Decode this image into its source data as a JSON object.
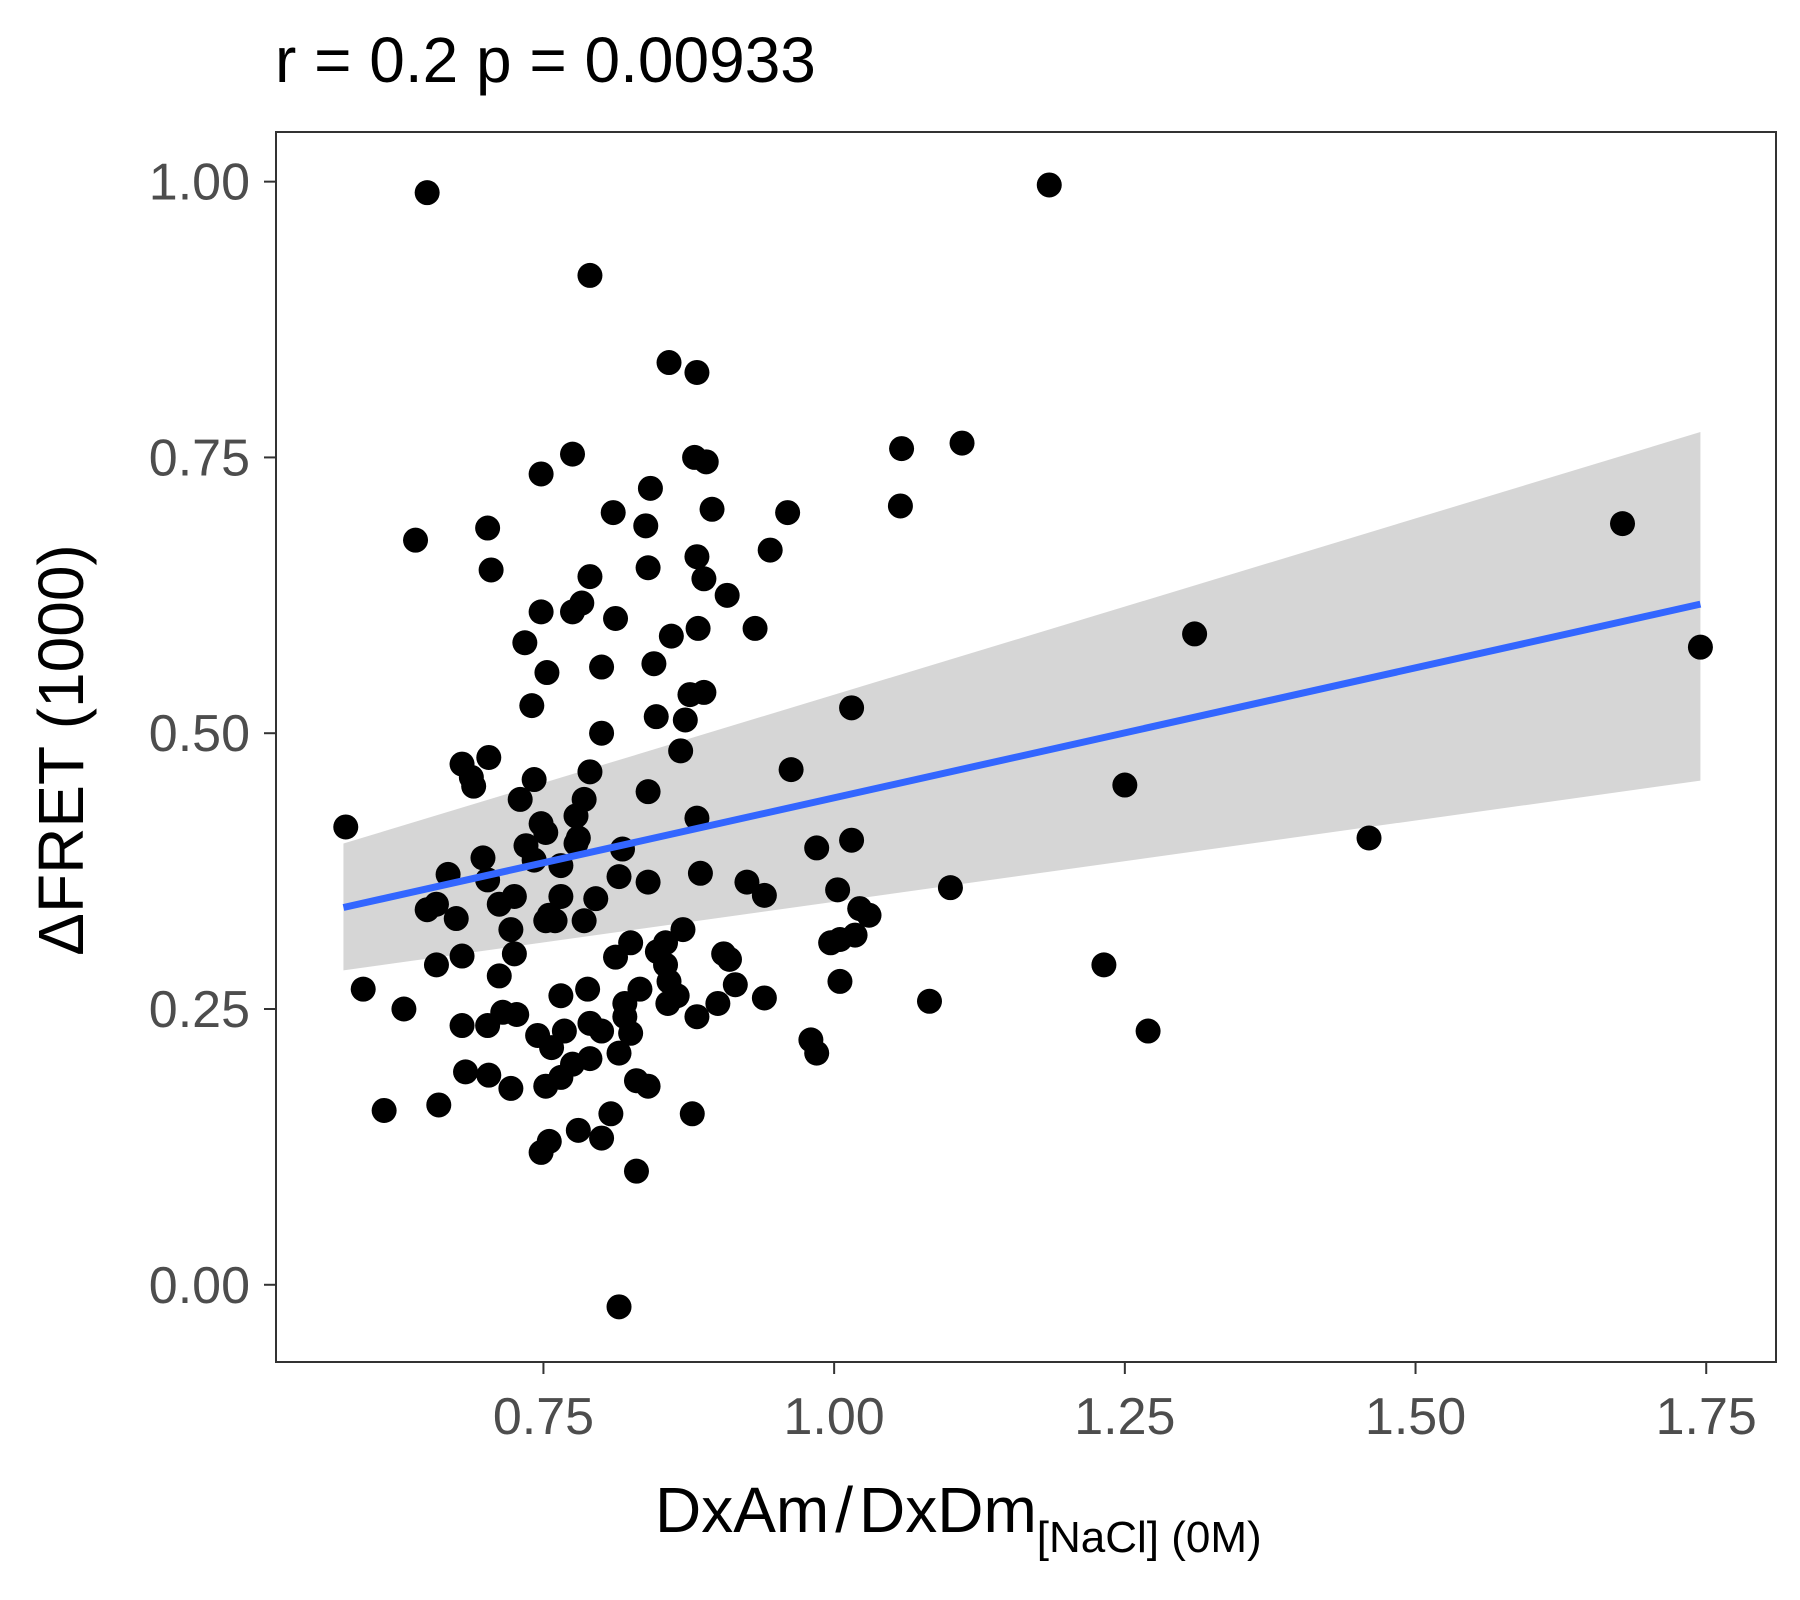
{
  "chart_data": {
    "type": "scatter",
    "title": "r =  0.2 p =  0.00933",
    "xlabel": {
      "main": "DxAm",
      "separator": "/",
      "main2": "DxDm",
      "subscript": "[NaCl] (0M)"
    },
    "ylabel": "ΔFRET (1000)",
    "xlim": [
      0.52,
      1.81
    ],
    "ylim": [
      -0.07,
      1.045
    ],
    "x_ticks": [
      0.75,
      1.0,
      1.25,
      1.5,
      1.75
    ],
    "x_tick_labels": [
      "0.75",
      "1.00",
      "1.25",
      "1.50",
      "1.75"
    ],
    "y_ticks": [
      0.0,
      0.25,
      0.5,
      0.75,
      1.0
    ],
    "y_tick_labels": [
      "0.00",
      "0.25",
      "0.50",
      "0.75",
      "1.00"
    ],
    "grid": false,
    "point_color": "#000000",
    "trend_color": "#3366ff",
    "band_color": "#999999",
    "trend": {
      "x": [
        0.578,
        1.745
      ],
      "y": [
        0.342,
        0.617
      ]
    },
    "confidence_band": {
      "x": [
        0.578,
        1.745
      ],
      "upper": [
        0.4,
        0.773
      ],
      "lower": [
        0.285,
        0.457
      ]
    },
    "points": [
      [
        0.58,
        0.415
      ],
      [
        0.65,
        0.99
      ],
      [
        0.64,
        0.675
      ],
      [
        0.79,
        0.915
      ],
      [
        1.185,
        0.997
      ],
      [
        0.858,
        0.836
      ],
      [
        0.882,
        0.827
      ],
      [
        0.775,
        0.753
      ],
      [
        0.748,
        0.735
      ],
      [
        0.88,
        0.75
      ],
      [
        0.89,
        0.746
      ],
      [
        0.842,
        0.722
      ],
      [
        1.058,
        0.758
      ],
      [
        1.11,
        0.763
      ],
      [
        1.057,
        0.706
      ],
      [
        0.96,
        0.7
      ],
      [
        0.895,
        0.703
      ],
      [
        0.81,
        0.7
      ],
      [
        0.838,
        0.688
      ],
      [
        0.702,
        0.686
      ],
      [
        0.945,
        0.666
      ],
      [
        0.882,
        0.66
      ],
      [
        0.84,
        0.65
      ],
      [
        0.705,
        0.648
      ],
      [
        0.888,
        0.64
      ],
      [
        0.79,
        0.642
      ],
      [
        0.908,
        0.625
      ],
      [
        0.783,
        0.618
      ],
      [
        0.775,
        0.61
      ],
      [
        0.748,
        0.61
      ],
      [
        0.812,
        0.604
      ],
      [
        0.932,
        0.595
      ],
      [
        0.883,
        0.595
      ],
      [
        0.86,
        0.588
      ],
      [
        0.734,
        0.582
      ],
      [
        0.845,
        0.563
      ],
      [
        0.8,
        0.56
      ],
      [
        0.753,
        0.555
      ],
      [
        0.888,
        0.537
      ],
      [
        0.876,
        0.535
      ],
      [
        1.015,
        0.523
      ],
      [
        0.74,
        0.525
      ],
      [
        0.847,
        0.515
      ],
      [
        0.872,
        0.512
      ],
      [
        0.8,
        0.5
      ],
      [
        0.868,
        0.484
      ],
      [
        0.703,
        0.478
      ],
      [
        0.68,
        0.472
      ],
      [
        0.79,
        0.465
      ],
      [
        0.963,
        0.467
      ],
      [
        0.688,
        0.46
      ],
      [
        0.742,
        0.458
      ],
      [
        0.69,
        0.452
      ],
      [
        0.84,
        0.447
      ],
      [
        0.785,
        0.44
      ],
      [
        0.73,
        0.44
      ],
      [
        0.778,
        0.425
      ],
      [
        0.882,
        0.423
      ],
      [
        0.748,
        0.418
      ],
      [
        0.752,
        0.41
      ],
      [
        0.78,
        0.405
      ],
      [
        0.778,
        0.4
      ],
      [
        0.735,
        0.398
      ],
      [
        0.818,
        0.395
      ],
      [
        0.985,
        0.396
      ],
      [
        1.015,
        0.403
      ],
      [
        0.698,
        0.387
      ],
      [
        0.742,
        0.385
      ],
      [
        0.765,
        0.38
      ],
      [
        0.668,
        0.372
      ],
      [
        0.885,
        0.373
      ],
      [
        0.815,
        0.37
      ],
      [
        0.702,
        0.367
      ],
      [
        0.84,
        0.365
      ],
      [
        0.925,
        0.365
      ],
      [
        1.003,
        0.358
      ],
      [
        1.1,
        0.36
      ],
      [
        0.94,
        0.353
      ],
      [
        0.765,
        0.352
      ],
      [
        0.795,
        0.35
      ],
      [
        0.725,
        0.352
      ],
      [
        0.712,
        0.345
      ],
      [
        0.658,
        0.345
      ],
      [
        0.65,
        0.34
      ],
      [
        1.022,
        0.341
      ],
      [
        1.03,
        0.335
      ],
      [
        0.755,
        0.335
      ],
      [
        0.752,
        0.33
      ],
      [
        0.76,
        0.33
      ],
      [
        0.785,
        0.33
      ],
      [
        0.675,
        0.332
      ],
      [
        0.722,
        0.322
      ],
      [
        0.87,
        0.322
      ],
      [
        1.018,
        0.317
      ],
      [
        1.005,
        0.313
      ],
      [
        0.997,
        0.31
      ],
      [
        0.855,
        0.31
      ],
      [
        0.825,
        0.31
      ],
      [
        0.725,
        0.3
      ],
      [
        0.905,
        0.3
      ],
      [
        0.848,
        0.302
      ],
      [
        0.812,
        0.297
      ],
      [
        0.68,
        0.298
      ],
      [
        0.91,
        0.295
      ],
      [
        0.855,
        0.29
      ],
      [
        0.658,
        0.29
      ],
      [
        1.232,
        0.29
      ],
      [
        0.712,
        0.28
      ],
      [
        0.858,
        0.275
      ],
      [
        0.915,
        0.272
      ],
      [
        1.005,
        0.275
      ],
      [
        0.595,
        0.268
      ],
      [
        0.788,
        0.268
      ],
      [
        0.833,
        0.268
      ],
      [
        0.865,
        0.262
      ],
      [
        0.765,
        0.262
      ],
      [
        0.94,
        0.26
      ],
      [
        1.082,
        0.257
      ],
      [
        0.9,
        0.255
      ],
      [
        0.857,
        0.255
      ],
      [
        0.82,
        0.255
      ],
      [
        0.63,
        0.25
      ],
      [
        0.715,
        0.247
      ],
      [
        0.727,
        0.245
      ],
      [
        0.82,
        0.243
      ],
      [
        0.882,
        0.243
      ],
      [
        0.702,
        0.235
      ],
      [
        0.68,
        0.235
      ],
      [
        0.79,
        0.237
      ],
      [
        0.768,
        0.23
      ],
      [
        0.8,
        0.23
      ],
      [
        0.825,
        0.228
      ],
      [
        0.745,
        0.226
      ],
      [
        1.27,
        0.23
      ],
      [
        0.98,
        0.222
      ],
      [
        0.985,
        0.21
      ],
      [
        0.757,
        0.215
      ],
      [
        0.815,
        0.21
      ],
      [
        0.79,
        0.205
      ],
      [
        0.775,
        0.2
      ],
      [
        0.683,
        0.193
      ],
      [
        0.703,
        0.19
      ],
      [
        0.765,
        0.188
      ],
      [
        0.83,
        0.185
      ],
      [
        0.84,
        0.18
      ],
      [
        0.752,
        0.18
      ],
      [
        0.722,
        0.178
      ],
      [
        0.66,
        0.163
      ],
      [
        0.613,
        0.158
      ],
      [
        0.808,
        0.155
      ],
      [
        0.878,
        0.155
      ],
      [
        0.78,
        0.14
      ],
      [
        0.8,
        0.133
      ],
      [
        0.755,
        0.13
      ],
      [
        0.748,
        0.12
      ],
      [
        0.83,
        0.103
      ],
      [
        0.815,
        -0.02
      ],
      [
        1.31,
        0.59
      ],
      [
        1.25,
        0.453
      ],
      [
        1.46,
        0.405
      ],
      [
        1.678,
        0.69
      ],
      [
        1.745,
        0.578
      ]
    ]
  }
}
